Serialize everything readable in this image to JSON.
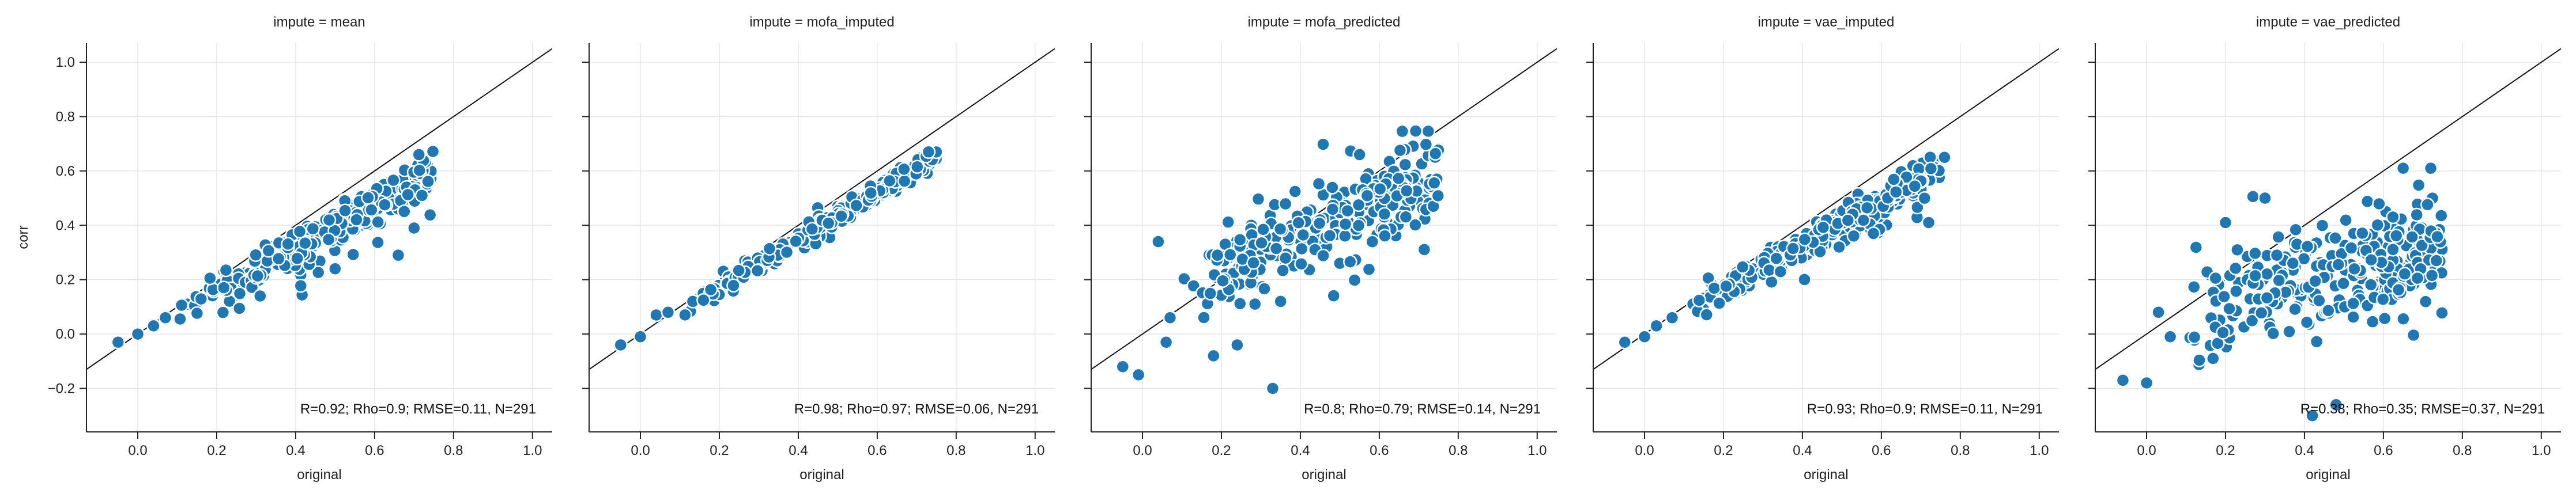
{
  "colors": {
    "point": "#1f77b4",
    "point_edge": "#ffffff",
    "grid": "#e6e6e6",
    "axis": "#222222",
    "diagonal": "#111111"
  },
  "chart_data": {
    "type": "scatter",
    "facet_variable": "impute",
    "x_label": "original",
    "y_label": "corr",
    "xlim": [
      -0.13,
      1.05
    ],
    "ylim": [
      -0.36,
      1.07
    ],
    "x_ticks": [
      0.0,
      0.2,
      0.4,
      0.6,
      0.8,
      1.0
    ],
    "x_tick_labels": [
      "0.0",
      "0.2",
      "0.4",
      "0.6",
      "0.8",
      "1.0"
    ],
    "y_ticks": [
      -0.2,
      0.0,
      0.2,
      0.4,
      0.6,
      0.8,
      1.0
    ],
    "y_tick_labels": [
      "−0.2",
      "0.0",
      "0.2",
      "0.4",
      "0.6",
      "0.8",
      "1.0"
    ],
    "grid": true,
    "diagonal": "y = x",
    "n_points": 291,
    "panels": [
      {
        "title": "impute = mean",
        "impute": "mean",
        "stats": "R=0.92; Rho=0.9; RMSE=0.11, N=291",
        "slope": 0.79,
        "intercept": 0.0,
        "noise": 0.035,
        "down_outlier_rate": 0.06,
        "extra_outliers": [
          [
            0.66,
            0.29
          ],
          [
            0.31,
            0.14
          ],
          [
            0.7,
            0.39
          ],
          [
            0.5,
            0.24
          ],
          [
            0.72,
            0.51
          ],
          [
            -0.05,
            -0.03
          ],
          [
            0.0,
            0.0
          ],
          [
            0.04,
            0.03
          ],
          [
            0.07,
            0.06
          ]
        ]
      },
      {
        "title": "impute = mofa_imputed",
        "impute": "mofa_imputed",
        "stats": "R=0.98; Rho=0.97; RMSE=0.06, N=291",
        "slope": 0.87,
        "intercept": 0.0,
        "noise": 0.02,
        "down_outlier_rate": 0.0,
        "extra_outliers": [
          [
            -0.05,
            -0.04
          ],
          [
            0.0,
            -0.01
          ],
          [
            0.04,
            0.07
          ],
          [
            0.07,
            0.08
          ],
          [
            0.73,
            0.67
          ]
        ]
      },
      {
        "title": "impute = mofa_predicted",
        "impute": "mofa_predicted",
        "stats": "R=0.8; Rho=0.79; RMSE=0.14, N=291",
        "slope": 0.62,
        "intercept": 0.11,
        "noise": 0.08,
        "down_outlier_rate": 0.0,
        "extra_outliers": [
          [
            -0.05,
            -0.12
          ],
          [
            -0.01,
            -0.15
          ],
          [
            0.04,
            0.34
          ],
          [
            0.33,
            -0.2
          ],
          [
            0.06,
            -0.03
          ],
          [
            0.07,
            0.06
          ],
          [
            0.18,
            -0.08
          ],
          [
            0.19,
            0.29
          ],
          [
            0.24,
            -0.04
          ],
          [
            0.55,
            0.66
          ],
          [
            0.35,
            0.12
          ]
        ]
      },
      {
        "title": "impute = vae_imputed",
        "impute": "vae_imputed",
        "stats": "R=0.93; Rho=0.9; RMSE=0.11, N=291",
        "slope": 0.81,
        "intercept": 0.0,
        "noise": 0.03,
        "down_outlier_rate": 0.04,
        "extra_outliers": [
          [
            -0.05,
            -0.03
          ],
          [
            0.0,
            -0.01
          ],
          [
            0.03,
            0.03
          ],
          [
            0.07,
            0.06
          ],
          [
            0.72,
            0.41
          ],
          [
            0.58,
            0.37
          ],
          [
            0.76,
            0.65
          ]
        ]
      },
      {
        "title": "impute = vae_predicted",
        "impute": "vae_predicted",
        "stats": "R=0.38; Rho=0.35; RMSE=0.37, N=291",
        "slope": 0.32,
        "intercept": 0.06,
        "noise": 0.11,
        "down_outlier_rate": 0.0,
        "extra_outliers": [
          [
            -0.06,
            -0.17
          ],
          [
            0.0,
            -0.18
          ],
          [
            0.03,
            0.08
          ],
          [
            0.06,
            -0.01
          ],
          [
            0.2,
            0.41
          ],
          [
            0.3,
            0.5
          ],
          [
            0.72,
            0.61
          ],
          [
            0.65,
            0.61
          ],
          [
            0.33,
            0.29
          ],
          [
            0.42,
            -0.3
          ],
          [
            0.48,
            -0.26
          ]
        ]
      }
    ]
  }
}
